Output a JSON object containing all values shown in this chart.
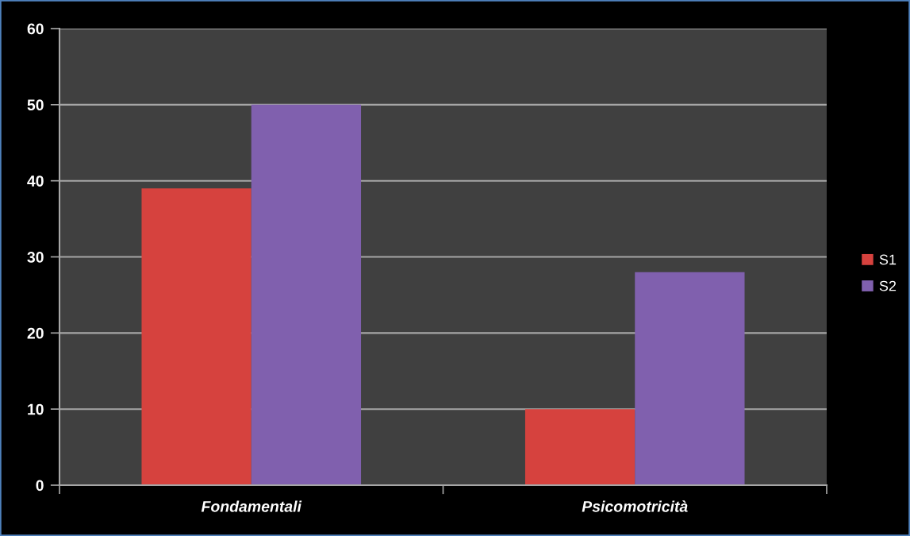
{
  "chart_data": {
    "type": "bar",
    "categories": [
      "Fondamentali",
      "Psicomotricità"
    ],
    "series": [
      {
        "name": "S1",
        "color": "#d6423e",
        "values": [
          39,
          10
        ]
      },
      {
        "name": "S2",
        "color": "#8060ae",
        "values": [
          50,
          28
        ]
      }
    ],
    "ylim": [
      0,
      60
    ],
    "yticks": [
      0,
      10,
      20,
      30,
      40,
      50,
      60
    ],
    "grid": "y",
    "legend": "right"
  }
}
